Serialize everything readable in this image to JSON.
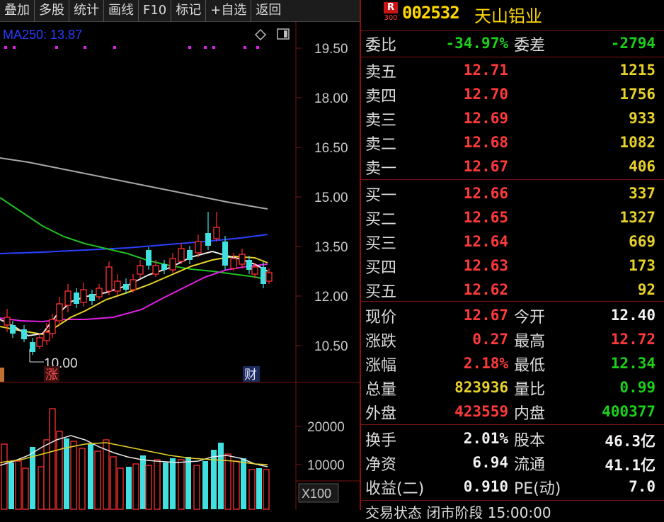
{
  "toolbar": {
    "buttons": [
      "叠加",
      "多股",
      "统计",
      "画线",
      "F10",
      "标记",
      "+自选",
      "返回"
    ]
  },
  "chart": {
    "ma_label": "MA250: 13.87",
    "price_ticks": [
      "19.50",
      "18.00",
      "16.50",
      "15.00",
      "13.50",
      "12.00",
      "10.50"
    ],
    "low_annotation": "10.00",
    "markers": [
      "涨",
      "财"
    ],
    "volume_ticks": [
      "20000",
      "10000"
    ],
    "volume_unit": "X100",
    "colors": {
      "up": "#ff3030",
      "down": "#40e0e0",
      "ma_white": "#e0e0e0",
      "ma_yellow": "#e8d22a",
      "ma_magenta": "#e020e0",
      "ma_green": "#20c020",
      "ma_blue": "#2040ff",
      "ma_gray": "#a0a0a0"
    }
  },
  "stock": {
    "badge_top": "R",
    "badge_bottom": "300",
    "code": "002532",
    "name": "天山铝业"
  },
  "order_ratio": {
    "label_ratio": "委比",
    "ratio": "-34.97%",
    "label_diff": "委差",
    "diff": "-2794"
  },
  "asks": [
    {
      "label": "卖五",
      "price": "12.71",
      "vol": "1215"
    },
    {
      "label": "卖四",
      "price": "12.70",
      "vol": "1756"
    },
    {
      "label": "卖三",
      "price": "12.69",
      "vol": "933"
    },
    {
      "label": "卖二",
      "price": "12.68",
      "vol": "1082"
    },
    {
      "label": "卖一",
      "price": "12.67",
      "vol": "406"
    }
  ],
  "bids": [
    {
      "label": "买一",
      "price": "12.66",
      "vol": "337"
    },
    {
      "label": "买二",
      "price": "12.65",
      "vol": "1327"
    },
    {
      "label": "买三",
      "price": "12.64",
      "vol": "669"
    },
    {
      "label": "买四",
      "price": "12.63",
      "vol": "173"
    },
    {
      "label": "买五",
      "price": "12.62",
      "vol": "92"
    }
  ],
  "quote": [
    {
      "l1": "现价",
      "v1": "12.67",
      "c1": "red",
      "l2": "今开",
      "v2": "12.40",
      "c2": "white"
    },
    {
      "l1": "涨跌",
      "v1": "0.27",
      "c1": "red",
      "l2": "最高",
      "v2": "12.72",
      "c2": "red"
    },
    {
      "l1": "涨幅",
      "v1": "2.18%",
      "c1": "red",
      "l2": "最低",
      "v2": "12.34",
      "c2": "green"
    },
    {
      "l1": "总量",
      "v1": "823936",
      "c1": "yellow",
      "l2": "量比",
      "v2": "0.99",
      "c2": "green"
    },
    {
      "l1": "外盘",
      "v1": "423559",
      "c1": "red",
      "l2": "内盘",
      "v2": "400377",
      "c2": "green"
    }
  ],
  "fundamentals": [
    {
      "l1": "换手",
      "v1": "2.01%",
      "l2": "股本",
      "v2": "46.3亿"
    },
    {
      "l1": "净资",
      "v1": "6.94",
      "l2": "流通",
      "v2": "41.1亿"
    },
    {
      "l1": "收益(二)",
      "v1": "0.910",
      "l2": "PE(动)",
      "v2": "7.0"
    }
  ],
  "bottom_text": "交易状态 闭市阶段 15:00:00"
}
